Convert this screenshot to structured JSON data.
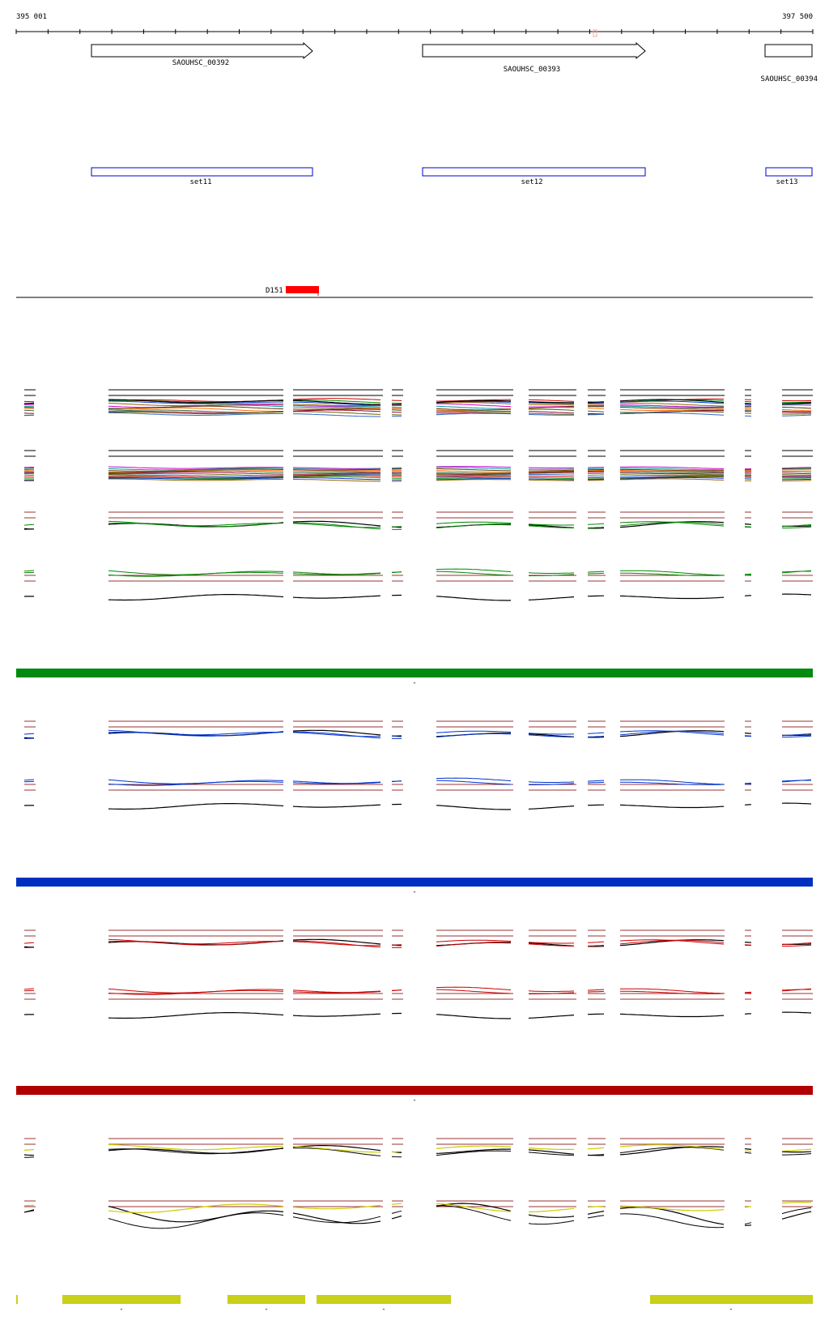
{
  "ruler": {
    "start_label": "395 001",
    "end_label": "397 500"
  },
  "genes": [
    {
      "label": "SAOUHSC_00392"
    },
    {
      "label": "SAOUHSC_00393"
    },
    {
      "label": "SAOUHSC_00394"
    }
  ],
  "sets": [
    {
      "label": "set11"
    },
    {
      "label": "set12"
    },
    {
      "label": "set13"
    }
  ],
  "feature": {
    "label": "D151",
    "color": "#ff0000"
  },
  "palette": {
    "green": "#008800",
    "blue": "#0033cc",
    "red": "#cc0000",
    "yellow": "#cccc00",
    "guide": "#993333",
    "trace": "#000000"
  },
  "sections": [
    {
      "id": "green",
      "bar_color": "#008a10",
      "marker": "-"
    },
    {
      "id": "blue",
      "bar_color": "#0030c0",
      "marker": "-"
    },
    {
      "id": "red",
      "bar_color": "#b00000",
      "marker": "-"
    },
    {
      "id": "yellow",
      "bar_color": "#c8d018",
      "marker": "-"
    }
  ]
}
